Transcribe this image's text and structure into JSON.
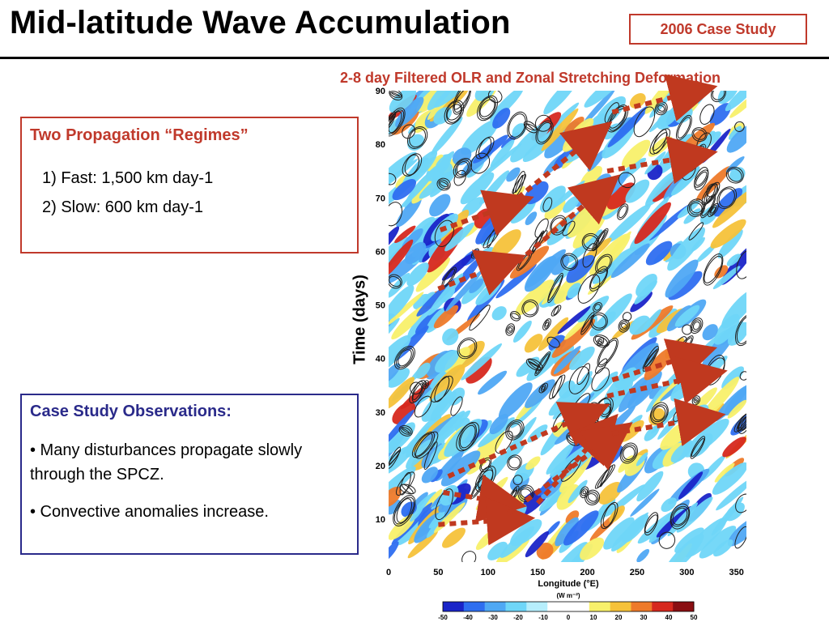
{
  "slide": {
    "title": "Mid-latitude Wave Accumulation",
    "badge": "2006 Case Study",
    "plot_title": "2-8 day Filtered OLR and Zonal Stretching Deformation"
  },
  "regimes": {
    "heading": "Two Propagation “Regimes”",
    "items": [
      "1)  Fast: 1,500 km day-1",
      "2)  Slow: 600 km day-1"
    ]
  },
  "observations": {
    "heading": "Case Study Observations:",
    "items": [
      "•  Many disturbances propagate slowly through the SPCZ.",
      "•  Convective anomalies increase."
    ]
  },
  "chart_data": {
    "type": "heatmap",
    "title": "2-8 day Filtered OLR and Zonal Stretching Deformation",
    "xlabel": "Longitude (°E)",
    "ylabel": "Time (days)",
    "xlim": [
      0,
      360
    ],
    "ylim": [
      2,
      90
    ],
    "x_ticks": [
      0,
      50,
      100,
      150,
      200,
      250,
      300,
      350
    ],
    "y_ticks": [
      10,
      20,
      30,
      40,
      50,
      60,
      70,
      80,
      90
    ],
    "colorbar": {
      "unit": "(W m⁻²)",
      "ticks": [
        -50,
        -40,
        -30,
        -20,
        -10,
        0,
        10,
        20,
        30,
        40,
        50
      ],
      "colors": [
        "#1a24c8",
        "#2e6ef0",
        "#4fa8f4",
        "#6fd6f8",
        "#b6eefc",
        "#ffffff",
        "#ffffff",
        "#f8f06a",
        "#f6c23a",
        "#ee7a2a",
        "#d6281e",
        "#8a0e12"
      ]
    },
    "arrows": [
      {
        "from": [
          52,
          64
        ],
        "to": [
          128,
          69
        ],
        "regime": "fast"
      },
      {
        "from": [
          50,
          53
        ],
        "to": [
          120,
          58
        ],
        "regime": "fast"
      },
      {
        "from": [
          130,
          70
        ],
        "to": [
          210,
          82
        ],
        "regime": "fast"
      },
      {
        "from": [
          130,
          58
        ],
        "to": [
          218,
          72
        ],
        "regime": "slow"
      },
      {
        "from": [
          225,
          86
        ],
        "to": [
          312,
          90
        ],
        "regime": "fast"
      },
      {
        "from": [
          220,
          75
        ],
        "to": [
          312,
          78
        ],
        "regime": "fast"
      },
      {
        "from": [
          55,
          15
        ],
        "to": [
          120,
          13
        ],
        "regime": "slow"
      },
      {
        "from": [
          50,
          9
        ],
        "to": [
          128,
          10
        ],
        "regime": "slow"
      },
      {
        "from": [
          60,
          18
        ],
        "to": [
          205,
          30
        ],
        "regime": "slow"
      },
      {
        "from": [
          150,
          13
        ],
        "to": [
          218,
          27
        ],
        "regime": "slow"
      },
      {
        "from": [
          120,
          11
        ],
        "to": [
          230,
          26
        ],
        "regime": "slow"
      },
      {
        "from": [
          225,
          36
        ],
        "to": [
          312,
          41
        ],
        "regime": "fast"
      },
      {
        "from": [
          220,
          33
        ],
        "to": [
          322,
          37
        ],
        "regime": "fast"
      },
      {
        "from": [
          225,
          26
        ],
        "to": [
          320,
          29
        ],
        "regime": "fast"
      }
    ]
  }
}
